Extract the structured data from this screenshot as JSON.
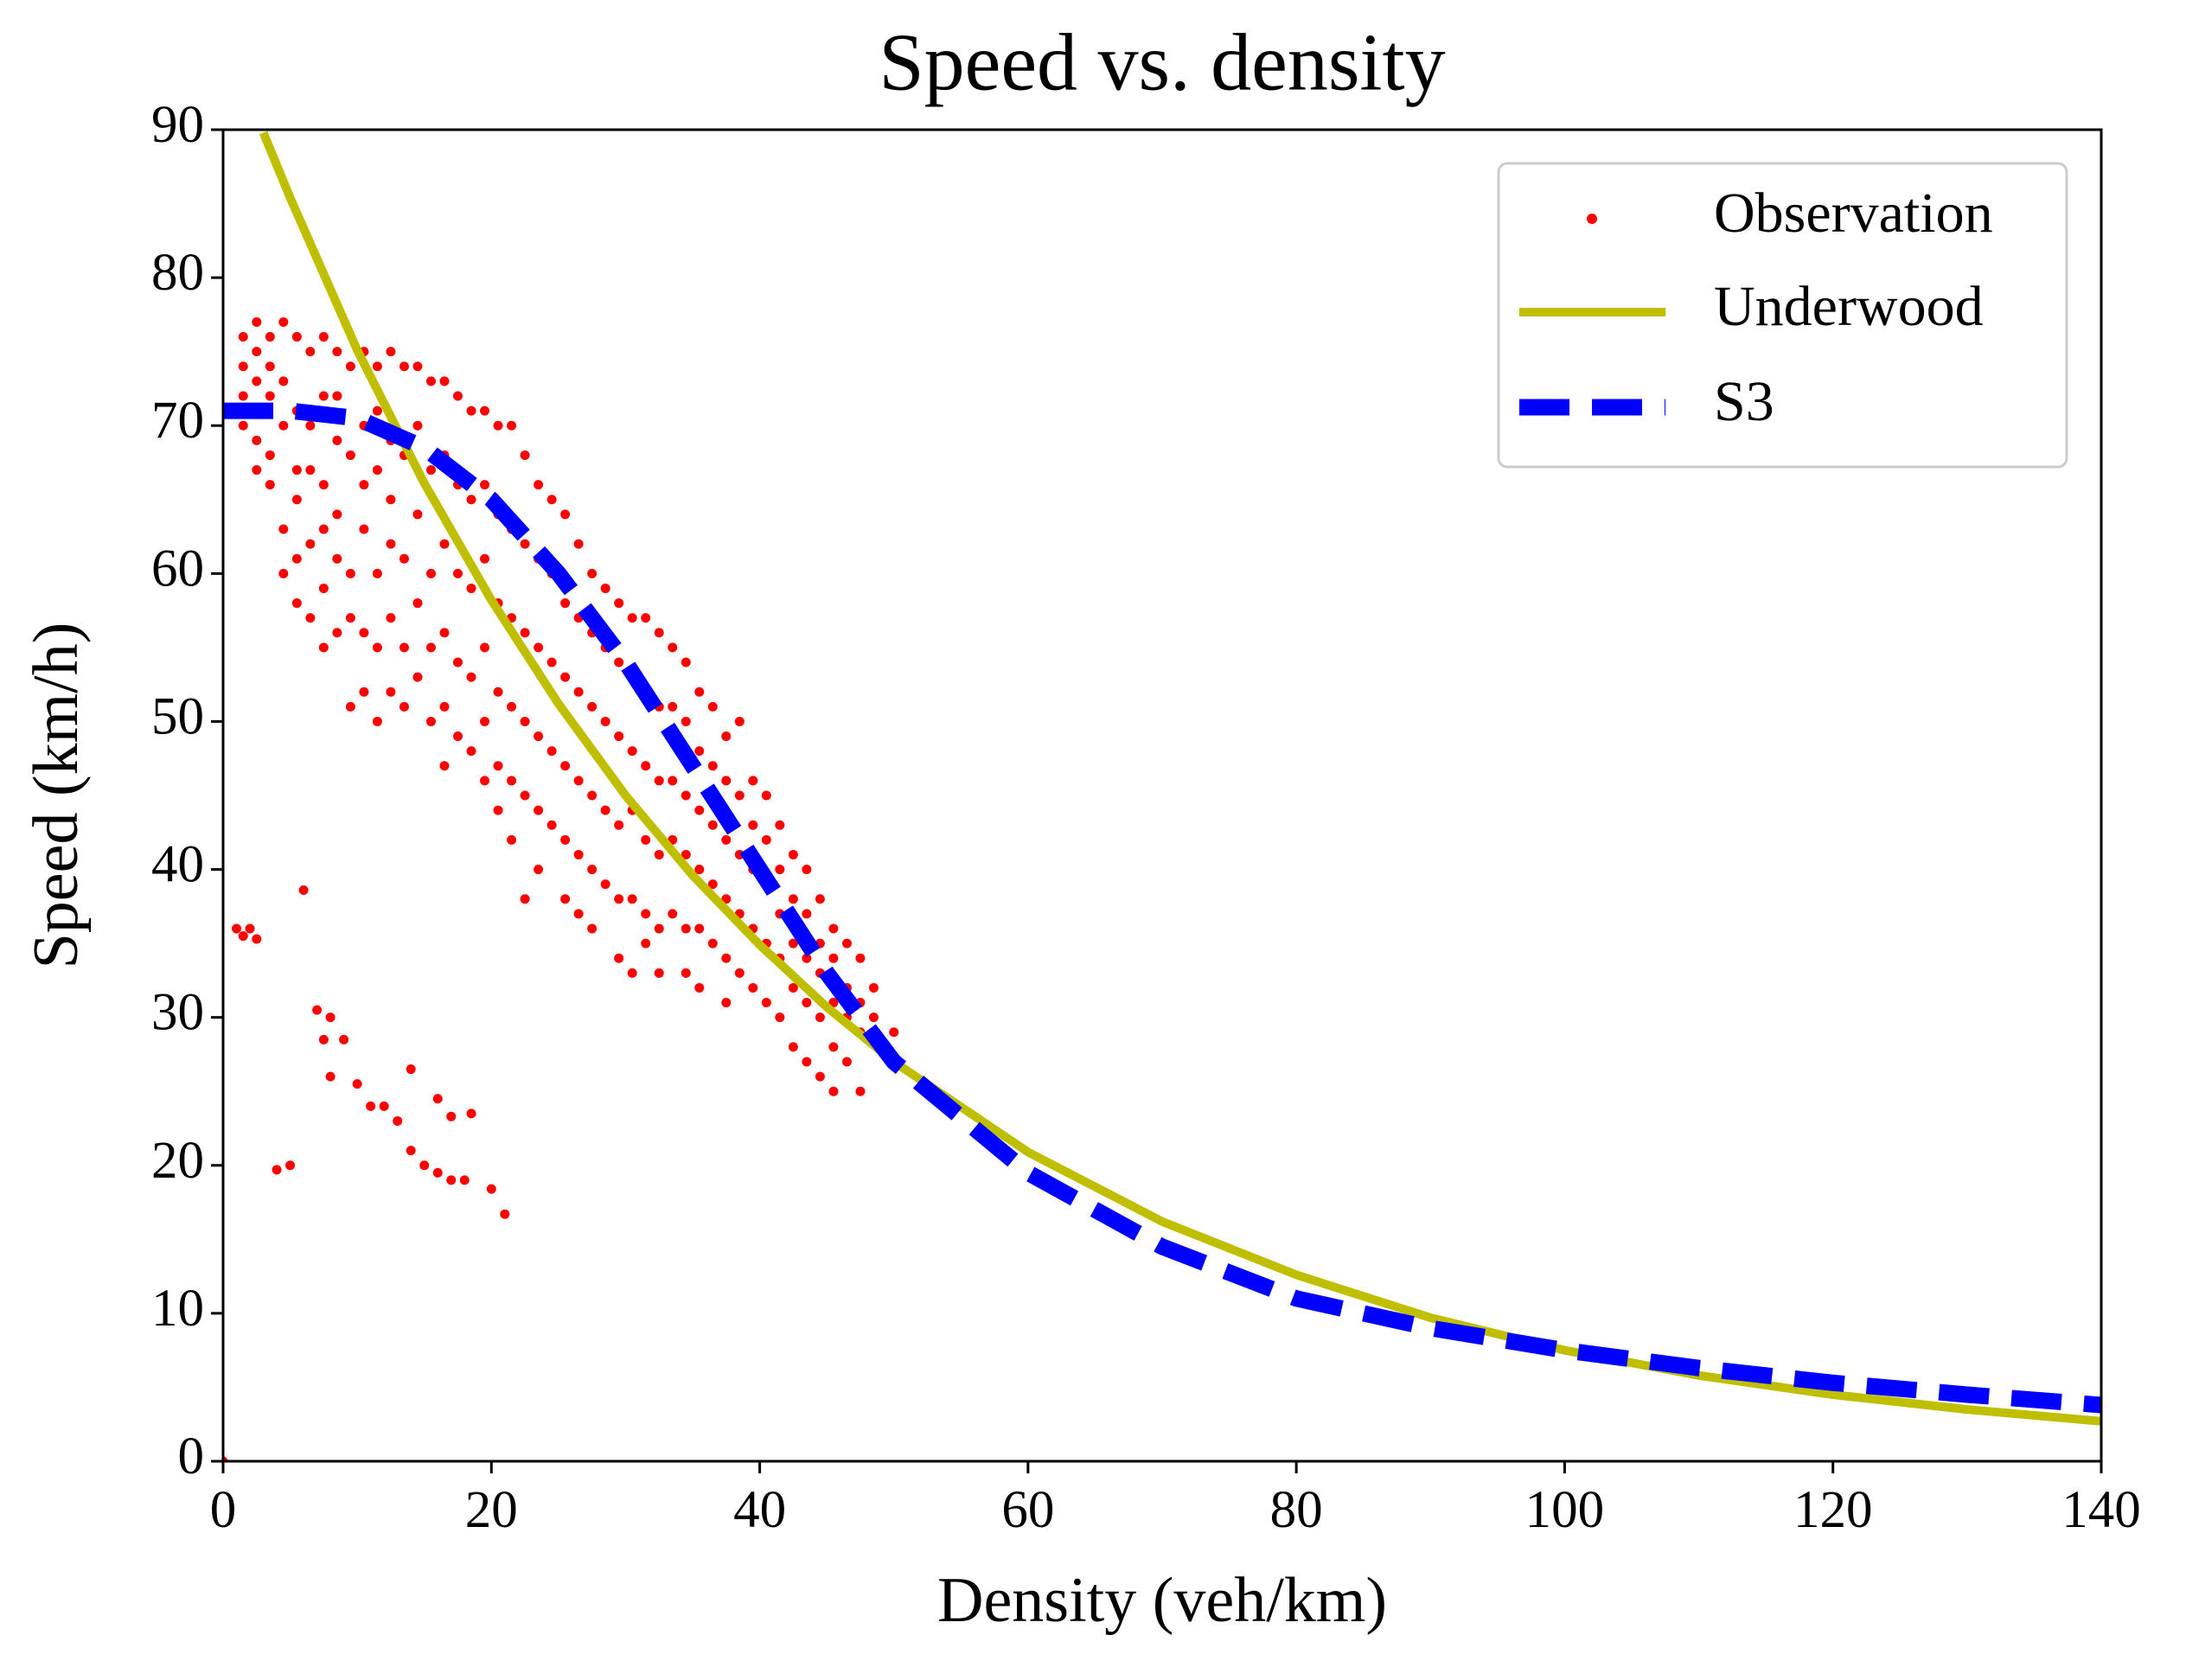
{
  "chart_data": {
    "type": "scatter",
    "title": "Speed vs. density",
    "x_label": "Density (veh/km)",
    "y_label": "Speed (km/h)",
    "xlim": [
      0,
      140
    ],
    "ylim": [
      0,
      90
    ],
    "xticks": [
      0,
      20,
      40,
      60,
      80,
      100,
      120,
      140
    ],
    "yticks": [
      0,
      10,
      20,
      30,
      40,
      50,
      60,
      70,
      80,
      90
    ],
    "legend": "upper right",
    "series": [
      {
        "name": "Observation",
        "color": "#ff0000",
        "mode": "markers",
        "x": [
          1.5,
          1.5,
          1.5,
          1.5,
          2.5,
          2.5,
          2.5,
          2.5,
          2.5,
          2.5,
          3.5,
          3.5,
          3.5,
          3.5,
          3.5,
          4.5,
          4.5,
          4.5,
          4.5,
          4.5,
          5.5,
          5.5,
          5.5,
          5.5,
          5.5,
          5.5,
          6.5,
          6.5,
          6.5,
          6.5,
          6.5,
          7.5,
          7.5,
          7.5,
          7.5,
          7.5,
          7.5,
          8.5,
          8.5,
          8.5,
          8.5,
          8.5,
          8.5,
          9.5,
          9.5,
          9.5,
          9.5,
          9.5,
          10.5,
          10.5,
          10.5,
          10.5,
          10.5,
          10.5,
          11.5,
          11.5,
          11.5,
          11.5,
          11.5,
          11.5,
          12.5,
          12.5,
          12.5,
          12.5,
          12.5,
          12.5,
          13.5,
          13.5,
          13.5,
          13.5,
          13.5,
          14.5,
          14.5,
          14.5,
          14.5,
          14.5,
          15.5,
          15.5,
          15.5,
          15.5,
          15.5,
          16.5,
          16.5,
          16.5,
          16.5,
          16.5,
          16.5,
          17.5,
          17.5,
          17.5,
          17.5,
          17.5,
          18.5,
          18.5,
          18.5,
          18.5,
          18.5,
          19.5,
          19.5,
          19.5,
          19.5,
          19.5,
          19.5,
          20.5,
          20.5,
          20.5,
          20.5,
          20.5,
          20.5,
          21.5,
          21.5,
          21.5,
          21.5,
          21.5,
          21.5,
          22.5,
          22.5,
          22.5,
          22.5,
          22.5,
          22.5,
          23.5,
          23.5,
          23.5,
          23.5,
          23.5,
          23.5,
          24.5,
          24.5,
          24.5,
          24.5,
          24.5,
          25.5,
          25.5,
          25.5,
          25.5,
          25.5,
          25.5,
          26.5,
          26.5,
          26.5,
          26.5,
          26.5,
          26.5,
          27.5,
          27.5,
          27.5,
          27.5,
          27.5,
          27.5,
          28.5,
          28.5,
          28.5,
          28.5,
          28.5,
          29.5,
          29.5,
          29.5,
          29.5,
          29.5,
          29.5,
          30.5,
          30.5,
          30.5,
          30.5,
          30.5,
          30.5,
          31.5,
          31.5,
          31.5,
          31.5,
          31.5,
          31.5,
          32.5,
          32.5,
          32.5,
          32.5,
          32.5,
          32.5,
          33.5,
          33.5,
          33.5,
          33.5,
          33.5,
          34.5,
          34.5,
          34.5,
          34.5,
          34.5,
          34.5,
          35.5,
          35.5,
          35.5,
          35.5,
          35.5,
          35.5,
          36.5,
          36.5,
          36.5,
          36.5,
          36.5,
          37.5,
          37.5,
          37.5,
          37.5,
          37.5,
          37.5,
          38.5,
          38.5,
          38.5,
          38.5,
          38.5,
          39.5,
          39.5,
          39.5,
          39.5,
          39.5,
          40.5,
          40.5,
          40.5,
          40.5,
          40.5,
          41.5,
          41.5,
          41.5,
          41.5,
          41.5,
          42.5,
          42.5,
          42.5,
          42.5,
          42.5,
          43.5,
          43.5,
          43.5,
          43.5,
          43.5,
          44.5,
          44.5,
          44.5,
          44.5,
          44.5,
          45.5,
          45.5,
          45.5,
          45.5,
          45.5,
          46.5,
          46.5,
          46.5,
          46.5,
          47.5,
          47.5,
          47.5,
          47.5,
          48.5,
          48.5,
          50,
          1,
          1.5,
          2,
          2.5,
          4,
          5,
          6,
          7,
          8,
          7.5,
          9,
          8,
          10,
          11,
          12,
          13,
          14,
          14,
          15,
          16,
          17,
          18,
          16,
          17,
          18.5,
          20,
          21,
          0
        ],
        "values": [
          72,
          74,
          76,
          70,
          71,
          75,
          77,
          73,
          69,
          67,
          76,
          72,
          68,
          66,
          74,
          77,
          73,
          70,
          60,
          63,
          76,
          71,
          65,
          58,
          61,
          67,
          75,
          70,
          62,
          57,
          67,
          76,
          72,
          66,
          59,
          55,
          63,
          75,
          69,
          61,
          56,
          64,
          72,
          74,
          68,
          60,
          51,
          57,
          75,
          70,
          63,
          56,
          52,
          66,
          74,
          67,
          60,
          55,
          50,
          71,
          75,
          69,
          62,
          57,
          52,
          65,
          74,
          68,
          61,
          55,
          51,
          74,
          70,
          64,
          58,
          53,
          73,
          67,
          60,
          55,
          50,
          73,
          68,
          62,
          56,
          51,
          47,
          72,
          66,
          60,
          54,
          49,
          71,
          65,
          59,
          53,
          48,
          71,
          66,
          61,
          55,
          50,
          46,
          70,
          64,
          58,
          52,
          47,
          44,
          70,
          63,
          57,
          51,
          46,
          42,
          68,
          62,
          56,
          50,
          45,
          38,
          66,
          61,
          55,
          49,
          44,
          40,
          65,
          60,
          54,
          48,
          43,
          64,
          58,
          53,
          47,
          42,
          38,
          62,
          57,
          52,
          46,
          41,
          37,
          60,
          56,
          51,
          45,
          40,
          36,
          59,
          55,
          50,
          44,
          39,
          58,
          54,
          49,
          43,
          38,
          34,
          57,
          53,
          48,
          44,
          38,
          33,
          57,
          52,
          47,
          42,
          37,
          35,
          56,
          51,
          46,
          41,
          36,
          33,
          55,
          51,
          46,
          42,
          37,
          54,
          50,
          45,
          41,
          36,
          33,
          52,
          48,
          44,
          40,
          36,
          32,
          51,
          47,
          43,
          39,
          35,
          49,
          46,
          42,
          38,
          34,
          31,
          50,
          45,
          41,
          37,
          33,
          46,
          43,
          40,
          36,
          32,
          45,
          42,
          39,
          35,
          31,
          43,
          40,
          37,
          34,
          30,
          41,
          38,
          35,
          32,
          28,
          40,
          37,
          34,
          31,
          27,
          38,
          35,
          33,
          30,
          26,
          36,
          34,
          31,
          28,
          25,
          35,
          32,
          30,
          27,
          34,
          31,
          29,
          25,
          32,
          30,
          29,
          36,
          35.5,
          36,
          35.3,
          19.7,
          20,
          38.6,
          30.5,
          30,
          28.5,
          28.5,
          26,
          25.5,
          24,
          24,
          23,
          26.5,
          21,
          20,
          19.5,
          19,
          19,
          24.5,
          23.3,
          23.5,
          18.4,
          16.7,
          0
        ]
      },
      {
        "name": "Underwood",
        "color": "#bfbf00",
        "mode": "line",
        "dashed": false,
        "x": [
          3,
          5,
          10,
          15,
          20,
          25,
          30,
          35,
          40,
          45,
          50,
          60,
          70,
          80,
          90,
          100,
          110,
          120,
          130,
          140
        ],
        "values": [
          89.8,
          85.4,
          75.1,
          66.1,
          58.2,
          51.2,
          45.0,
          39.6,
          34.9,
          30.7,
          27.0,
          20.9,
          16.2,
          12.6,
          9.7,
          7.5,
          5.8,
          4.5,
          3.5,
          2.7
        ]
      },
      {
        "name": "S3",
        "color": "#0000ff",
        "mode": "line",
        "dashed": true,
        "x": [
          0,
          5,
          10,
          15,
          20,
          25,
          30,
          35,
          40,
          45,
          50,
          60,
          70,
          80,
          90,
          100,
          110,
          120,
          130,
          140
        ],
        "values": [
          71,
          71,
          70.5,
          68.5,
          65,
          60,
          54,
          47,
          40,
          33,
          27,
          19.5,
          14.5,
          11,
          9,
          7.5,
          6.3,
          5.3,
          4.5,
          3.8
        ]
      }
    ]
  }
}
